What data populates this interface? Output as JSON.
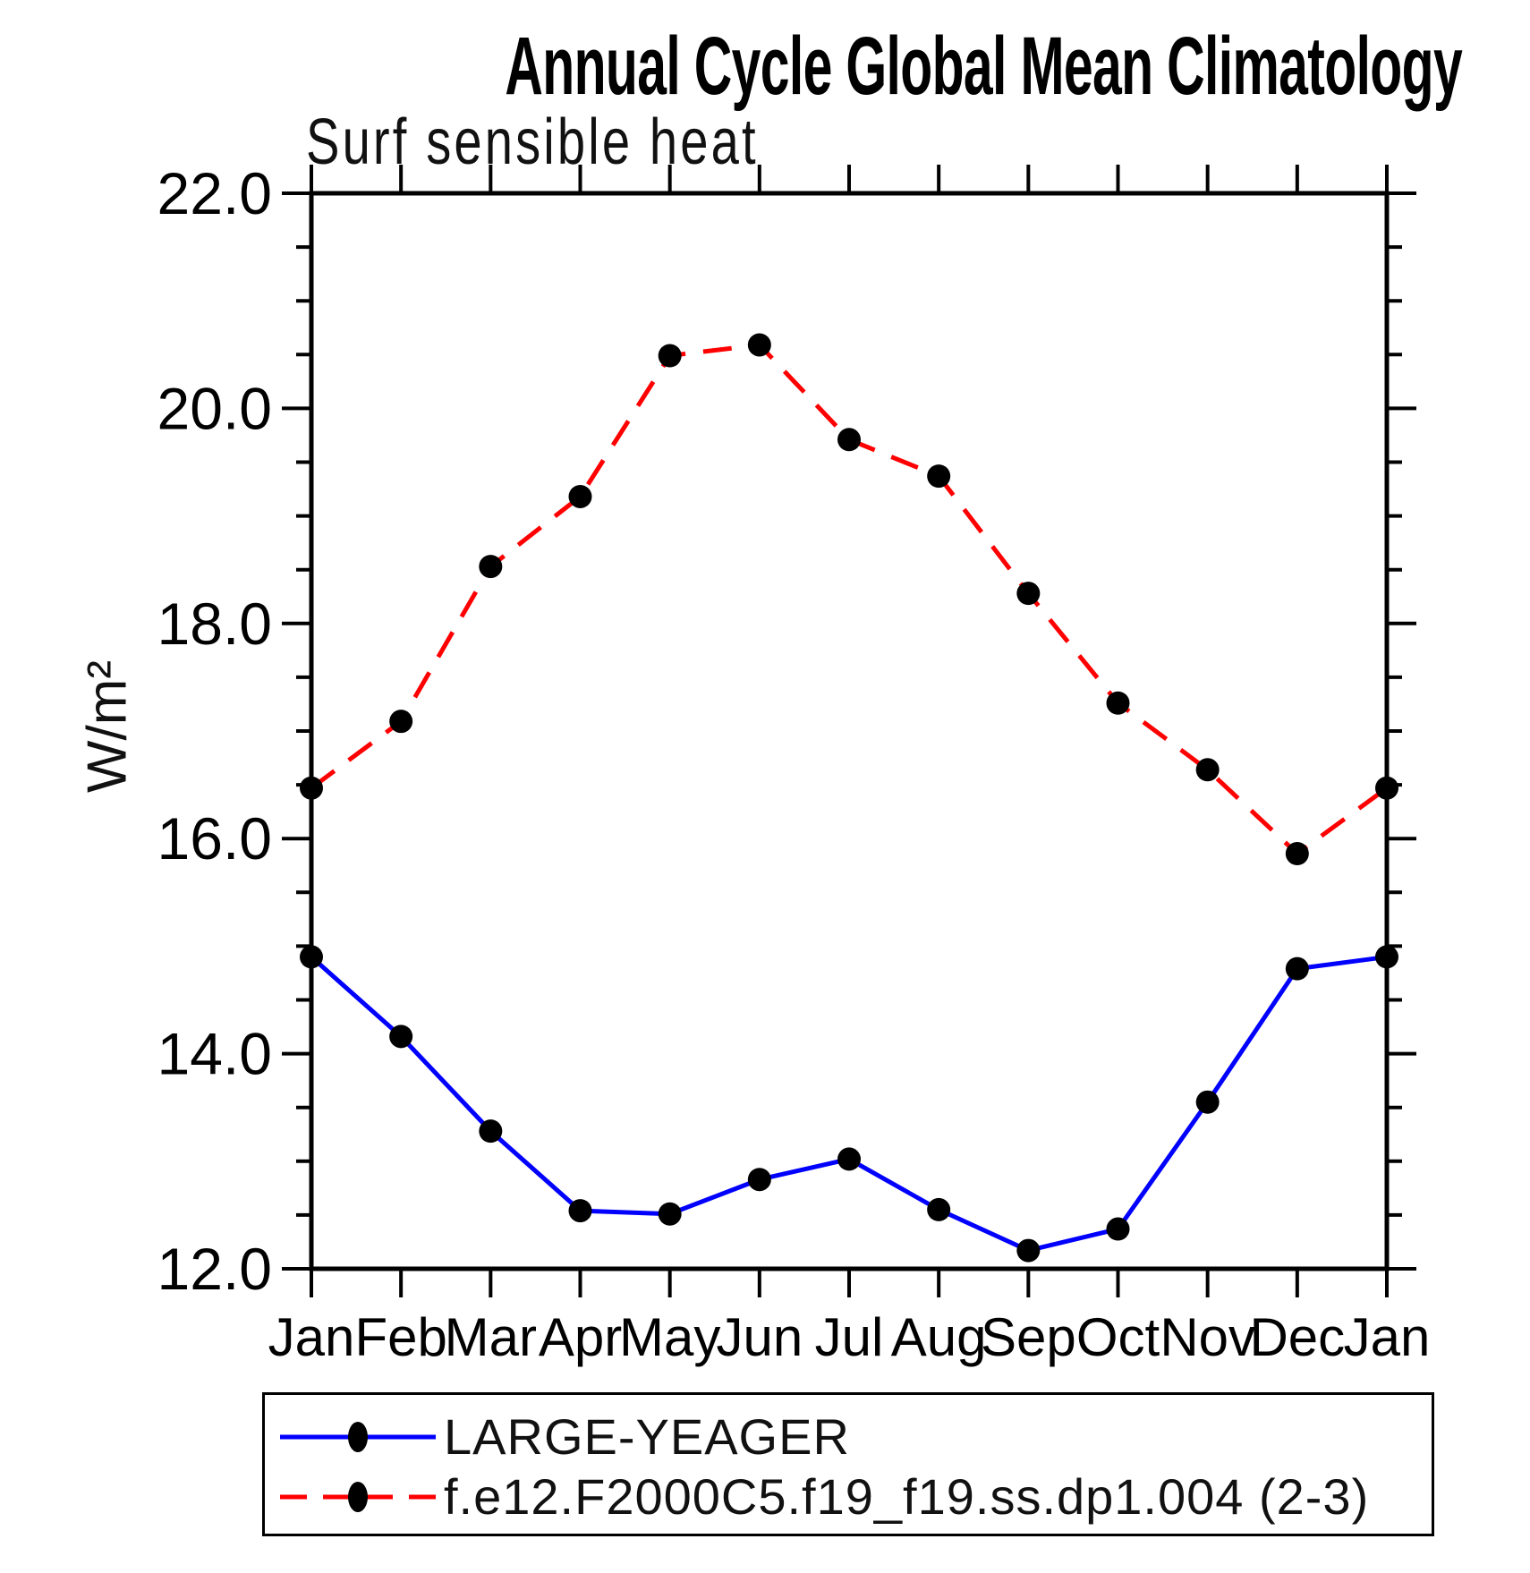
{
  "title": "Annual Cycle Global Mean Climatology",
  "subtitle": "Surf sensible heat",
  "colors": {
    "axis": "#000000",
    "series1": "#0000ff",
    "series2": "#ff0000",
    "marker": "#000000"
  },
  "legend": {
    "entries": [
      {
        "label": "LARGE-YEAGER",
        "color": "#0000ff",
        "style": "solid"
      },
      {
        "label": "f.e12.F2000C5.f19_f19.ss.dp1.004 (2-3)",
        "color": "#ff0000",
        "style": "dashed"
      }
    ]
  },
  "chart_data": {
    "type": "line",
    "title": "Annual Cycle Global Mean Climatology",
    "subtitle": "Surf sensible heat",
    "xlabel": "",
    "ylabel": "W/m²",
    "ylim": [
      12.0,
      22.0
    ],
    "ytick_major": 2.0,
    "ytick_minor": 0.5,
    "ytick_labels": [
      "22.0",
      "20.0",
      "18.0",
      "16.0",
      "14.0",
      "12.0"
    ],
    "grid": false,
    "legend_position": "bottom",
    "categories": [
      "Jan",
      "Feb",
      "Mar",
      "Apr",
      "May",
      "Jun",
      "Jul",
      "Aug",
      "Sep",
      "Oct",
      "Nov",
      "Dec",
      "Jan"
    ],
    "series": [
      {
        "name": "LARGE-YEAGER",
        "color": "#0000ff",
        "line": "solid",
        "marker": "circle",
        "values": [
          14.9,
          14.16,
          13.28,
          12.54,
          12.51,
          12.83,
          13.02,
          12.55,
          12.17,
          12.37,
          13.55,
          14.79,
          14.9
        ]
      },
      {
        "name": "f.e12.F2000C5.f19_f19.ss.dp1.004 (2-3)",
        "color": "#ff0000",
        "line": "dashed",
        "marker": "circle",
        "values": [
          16.47,
          17.09,
          18.53,
          19.18,
          20.49,
          20.59,
          19.71,
          19.37,
          18.28,
          17.26,
          16.64,
          15.86,
          16.47
        ]
      }
    ]
  }
}
